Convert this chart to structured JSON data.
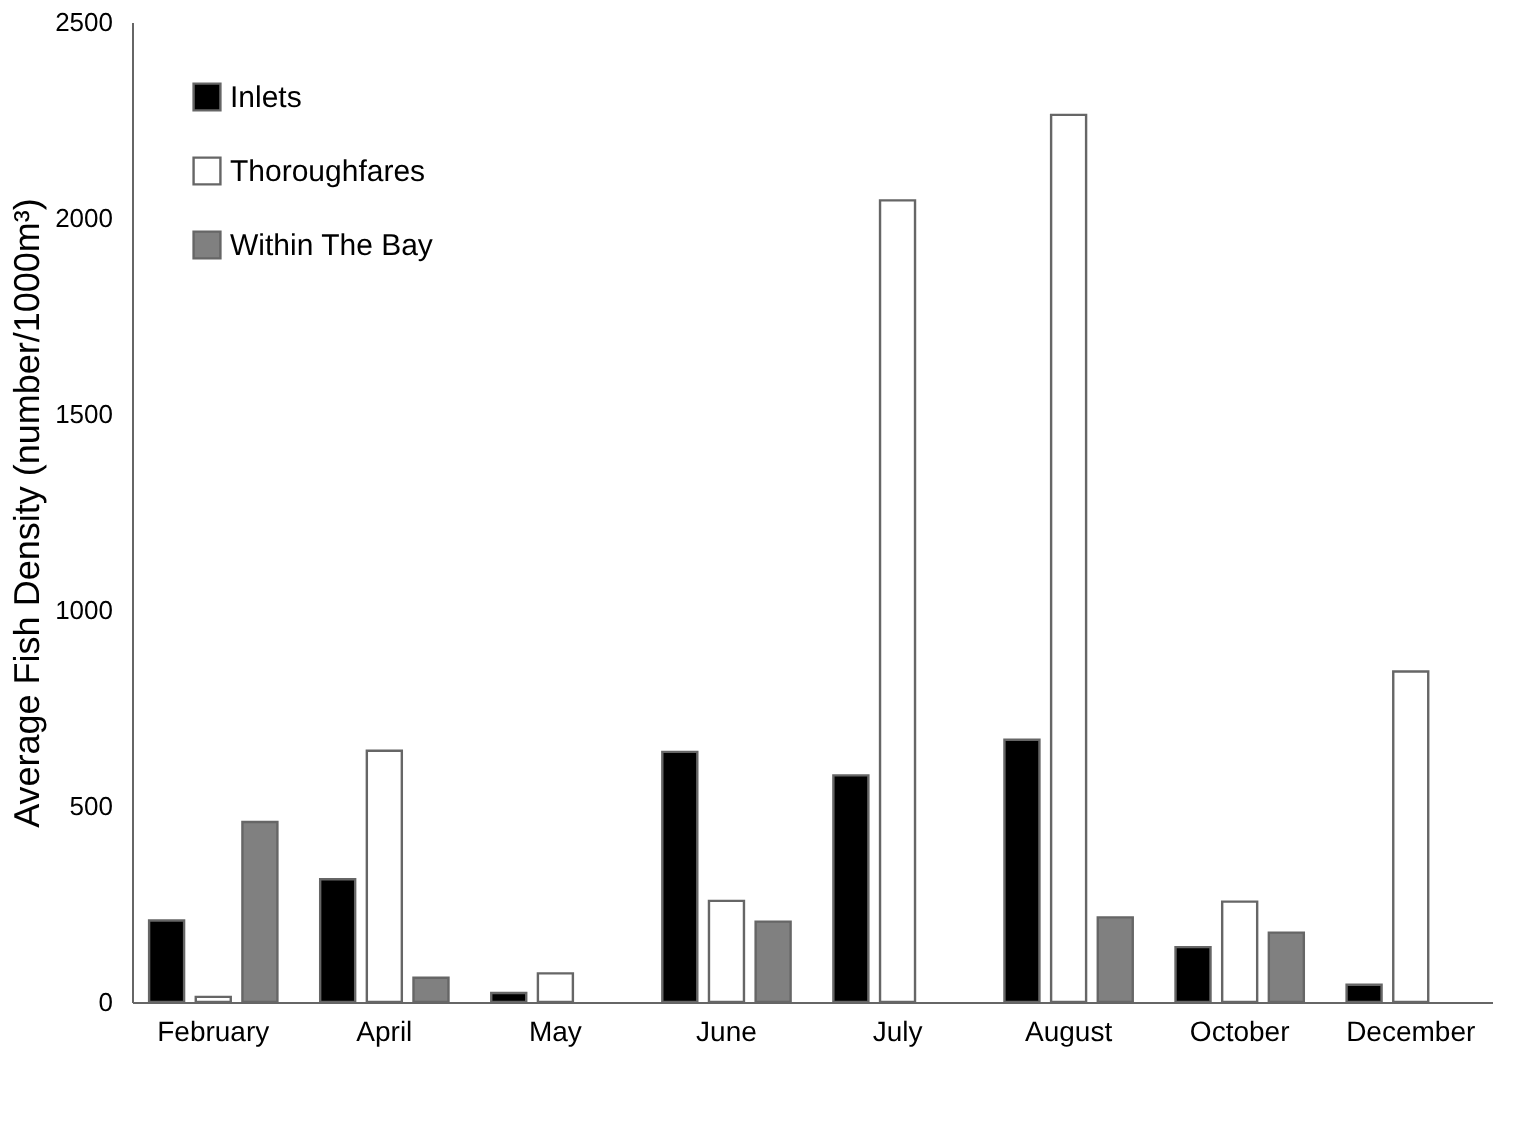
{
  "chart_data": {
    "type": "bar",
    "ylabel": "Average Fish Density (number/1000m³)",
    "categories": [
      "February",
      "April",
      "May",
      "June",
      "July",
      "August",
      "October",
      "December"
    ],
    "series": [
      {
        "name": "Inlets",
        "color": "#000000",
        "values": [
          208,
          313,
          23,
          638,
          578,
          669,
          140,
          44
        ]
      },
      {
        "name": "Thoroughfares",
        "color": "#ffffff",
        "values": [
          13,
          641,
          73,
          258,
          2045,
          2263,
          256,
          843
        ]
      },
      {
        "name": "Within The Bay",
        "color": "#808080",
        "values": [
          459,
          62,
          null,
          205,
          null,
          216,
          177,
          null
        ]
      }
    ],
    "ylim": [
      0,
      2500
    ],
    "yticks": [
      0,
      500,
      1000,
      1500,
      2000,
      2500
    ],
    "grid": false,
    "legend": "top left"
  }
}
